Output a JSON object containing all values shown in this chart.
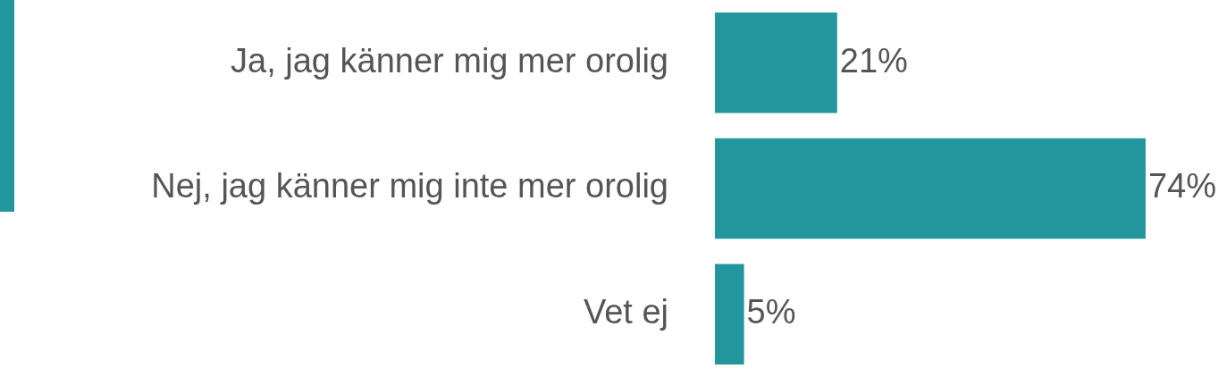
{
  "chart_data": {
    "type": "bar",
    "orientation": "horizontal",
    "categories": [
      "Ja, jag känner mig mer orolig",
      "Nej, jag känner mig inte mer orolig",
      "Vet ej"
    ],
    "values": [
      21,
      74,
      5
    ],
    "color": "#23959c",
    "value_labels": [
      "21%",
      "74%",
      "5%"
    ],
    "legend": false
  }
}
